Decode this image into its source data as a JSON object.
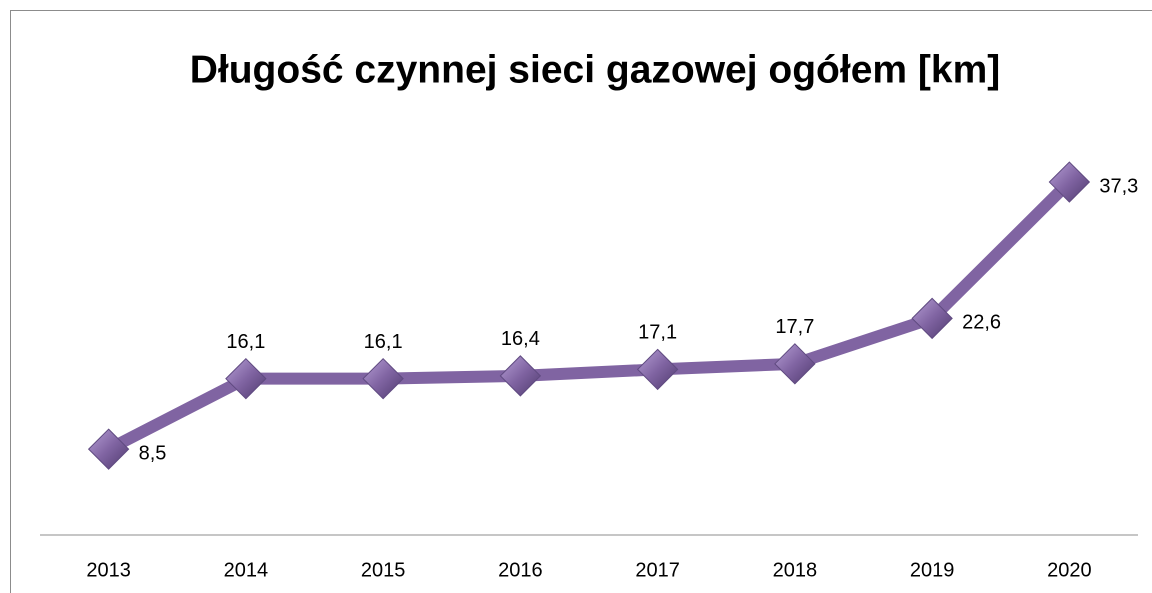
{
  "chart_data": {
    "type": "line",
    "title": "Długość czynnej sieci gazowej ogółem [km]",
    "categories": [
      "2013",
      "2014",
      "2015",
      "2016",
      "2017",
      "2018",
      "2019",
      "2020"
    ],
    "series": [
      {
        "name": "Długość czynnej sieci gazowej ogółem [km]",
        "color": "#8064a2",
        "values": [
          8.5,
          16.1,
          16.1,
          16.4,
          17.1,
          17.7,
          22.6,
          37.3
        ],
        "value_labels": [
          "8,5",
          "16,1",
          "16,1",
          "16,4",
          "17,1",
          "17,7",
          "22,6",
          "37,3"
        ]
      }
    ],
    "ylim": [
      0,
      40
    ]
  }
}
